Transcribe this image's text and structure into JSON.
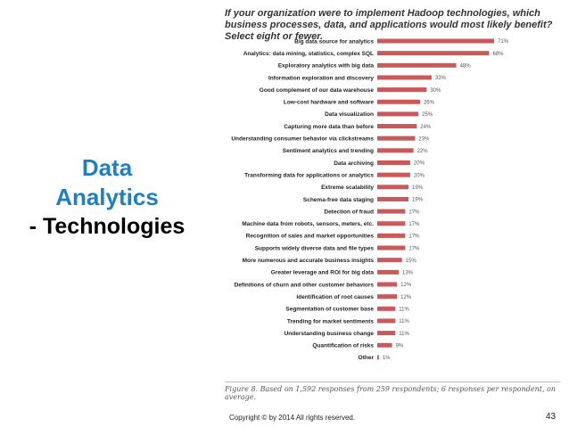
{
  "slide": {
    "title_line1": "Data",
    "title_line2": "Analytics",
    "title_line3": "- Technologies",
    "footer": "Copyright ©  by 2014 All rights reserved.",
    "page_number": "43"
  },
  "colors": {
    "bar": "#c9595a",
    "title_blue": "#1f7fc1"
  },
  "chart_data": {
    "type": "bar",
    "orientation": "horizontal",
    "title": "If your organization were to implement Hadoop technologies, which business processes, data, and applications would most likely benefit? Select eight or fewer.",
    "caption": "Figure 8. Based on 1,592 responses from 259 respondents; 6 responses per respondent, on average.",
    "unit": "%",
    "xlim": [
      0,
      71
    ],
    "categories": [
      "Big data source for analytics",
      "Analytics: data mining, statistics, complex SQL",
      "Exploratory analytics with big data",
      "Information exploration and discovery",
      "Good complement of our data warehouse",
      "Low-cost hardware and software",
      "Data visualization",
      "Capturing more data than before",
      "Understanding consumer behavior via clickstreams",
      "Sentiment analytics and trending",
      "Data archiving",
      "Transforming data for applications or analytics",
      "Extreme scalability",
      "Schema-free data staging",
      "Detection of fraud",
      "Machine data from robots, sensors, meters, etc.",
      "Recognition of sales and market opportunities",
      "Supports widely diverse data and file types",
      "More numerous and accurate business insights",
      "Greater leverage and ROI for big data",
      "Definitions of churn and other customer behaviors",
      "Identification of root causes",
      "Segmentation of customer base",
      "Trending for market sentiments",
      "Understanding business change",
      "Quantification of risks",
      "Other"
    ],
    "values": [
      71,
      68,
      48,
      33,
      30,
      26,
      25,
      24,
      23,
      22,
      20,
      20,
      19,
      19,
      17,
      17,
      17,
      17,
      15,
      13,
      12,
      12,
      11,
      11,
      11,
      9,
      1
    ],
    "value_labels": [
      "71%",
      "68%",
      "48%",
      "33%",
      "30%",
      "26%",
      "25%",
      "24%",
      "23%",
      "22%",
      "20%",
      "20%",
      "19%",
      "19%",
      "17%",
      "17%",
      "17%",
      "17%",
      "15%",
      "13%",
      "12%",
      "12%",
      "11%",
      "11%",
      "11%",
      "9%",
      "1%"
    ]
  }
}
